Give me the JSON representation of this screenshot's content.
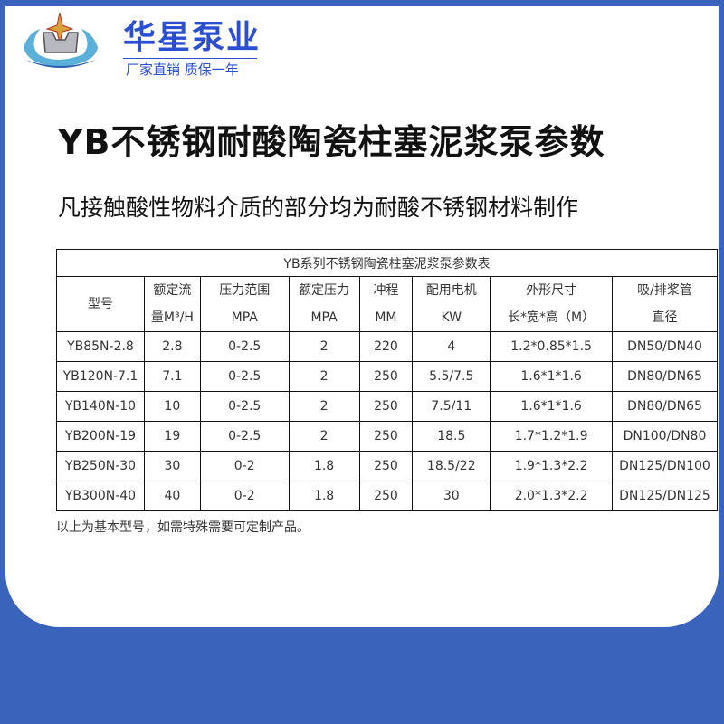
{
  "brand": {
    "name": "华星泵业",
    "slogan": "厂家直销 质保一年"
  },
  "title": "YB不锈钢耐酸陶瓷柱塞泥浆泵参数",
  "subtitle": "凡接触酸性物料介质的部分均为耐酸不锈钢材料制作",
  "table": {
    "caption": "YB系列不锈钢陶瓷柱塞泥浆泵参数表",
    "headers": [
      [
        "型号",
        ""
      ],
      [
        "额定流",
        "量M³/H"
      ],
      [
        "压力范围",
        "MPA"
      ],
      [
        "额定压力",
        "MPA"
      ],
      [
        "冲程",
        "MM"
      ],
      [
        "配用电机",
        "KW"
      ],
      [
        "外形尺寸",
        "长*宽*高（M）"
      ],
      [
        "吸/排浆管",
        "直径"
      ]
    ],
    "rows": [
      [
        "YB85N-2.8",
        "2.8",
        "0-2.5",
        "2",
        "220",
        "4",
        "1.2*0.85*1.5",
        "DN50/DN40"
      ],
      [
        "YB120N-7.1",
        "7.1",
        "0-2.5",
        "2",
        "250",
        "5.5/7.5",
        "1.6*1*1.6",
        "DN80/DN65"
      ],
      [
        "YB140N-10",
        "10",
        "0-2.5",
        "2",
        "250",
        "7.5/11",
        "1.6*1*1.6",
        "DN80/DN65"
      ],
      [
        "YB200N-19",
        "19",
        "0-2.5",
        "2",
        "250",
        "18.5",
        "1.7*1.2*1.9",
        "DN100/DN80"
      ],
      [
        "YB250N-30",
        "30",
        "0-2",
        "1.8",
        "250",
        "18.5/22",
        "1.9*1.3*2.2",
        "DN125/DN100"
      ],
      [
        "YB300N-40",
        "40",
        "0-2",
        "1.8",
        "250",
        "30",
        "2.0*1.3*2.2",
        "DN125/DN125"
      ]
    ]
  },
  "note": "以上为基本型号，如需特殊需要可定制产品。",
  "colors": {
    "background": "#3a63bb",
    "brand": "#2a4fd0"
  }
}
